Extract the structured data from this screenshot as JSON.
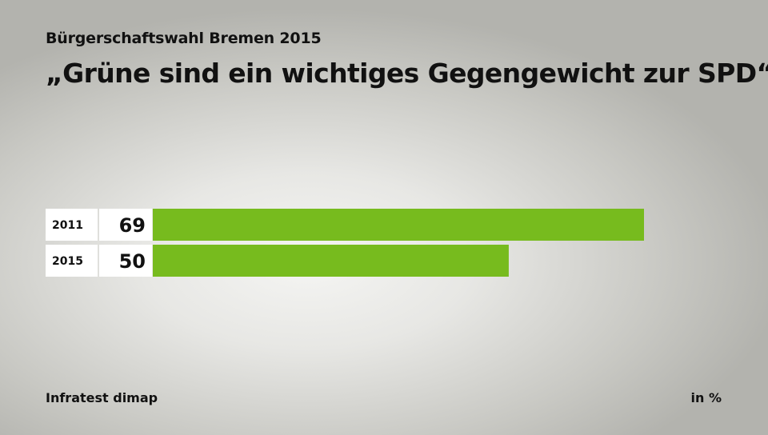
{
  "header": {
    "subtitle": "Bürgerschaftswahl Bremen 2015",
    "title": "„Grüne sind ein wichtiges Gegengewicht zur SPD“"
  },
  "footer": {
    "source": "Infratest dimap",
    "unit": "in %"
  },
  "colors": {
    "bar": "#77bb1e",
    "label_box": "#ffffff"
  },
  "chart_data": {
    "type": "bar",
    "orientation": "horizontal",
    "title": "„Grüne sind ein wichtiges Gegengewicht zur SPD“",
    "subtitle": "Bürgerschaftswahl Bremen 2015",
    "categories": [
      "2011",
      "2015"
    ],
    "values": [
      69,
      50
    ],
    "xlim": [
      0,
      69
    ],
    "unit": "in %",
    "grid": false,
    "legend": "none"
  }
}
